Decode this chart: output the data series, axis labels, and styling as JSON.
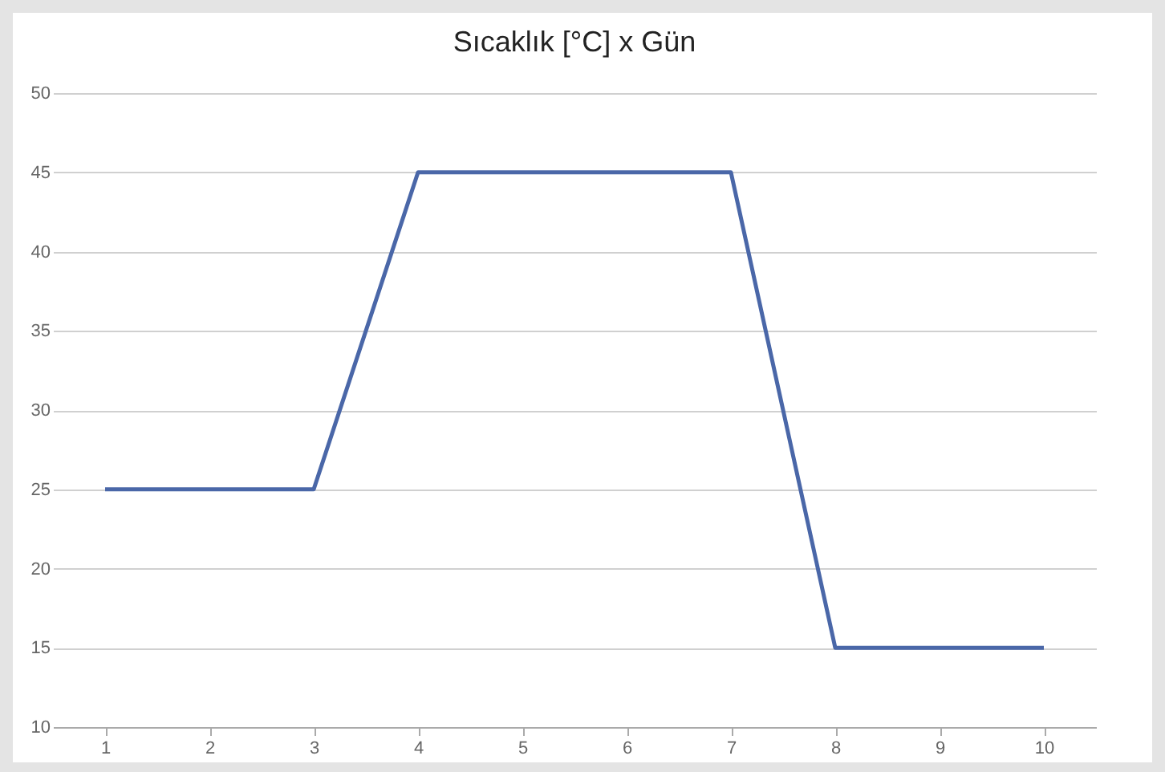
{
  "chart_data": {
    "type": "line",
    "title": "Sıcaklık [°C] x Gün",
    "categories": [
      "1",
      "2",
      "3",
      "4",
      "5",
      "6",
      "7",
      "8",
      "9",
      "10"
    ],
    "series": [
      {
        "color": "#4a67a8",
        "values": [
          25,
          25,
          25,
          45,
          45,
          45,
          45,
          15,
          15,
          15
        ]
      }
    ],
    "ylim": [
      10,
      50
    ],
    "yticks": [
      10,
      15,
      20,
      25,
      30,
      35,
      40,
      45,
      50
    ],
    "grid": "y",
    "legend": false,
    "marker": "none",
    "line_style": "solid"
  }
}
